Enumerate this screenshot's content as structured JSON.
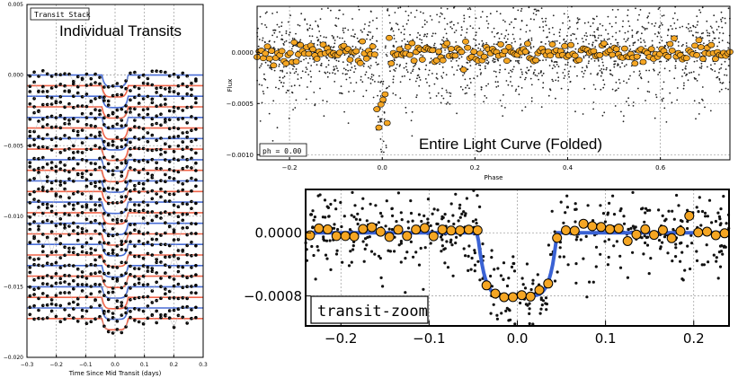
{
  "chart_data": [
    {
      "type": "line",
      "title": "Individual Transits",
      "badge": "Transit Stack",
      "xlabel": "Time Since Mid Transit (days)",
      "ylabel": "",
      "xlim": [
        -0.3,
        0.3
      ],
      "ylim": [
        -0.02,
        0.005
      ],
      "xticks": [
        -0.3,
        -0.2,
        -0.1,
        0.0,
        0.1,
        0.2,
        0.3
      ],
      "xtick_labels": [
        "−0.3",
        "−0.2",
        "−0.1",
        "0.0",
        "0.1",
        "0.2",
        "0.3"
      ],
      "yticks": [
        0.005,
        0.0,
        -0.005,
        -0.01,
        -0.015,
        -0.02
      ],
      "ytick_labels": [
        "0.005",
        "0.000",
        "−0.005",
        "−0.010",
        "−0.015",
        "−0.020"
      ],
      "stack_offsets": [
        0.0,
        -0.00075,
        -0.0015,
        -0.00225,
        -0.003,
        -0.00375,
        -0.0045,
        -0.00525,
        -0.006,
        -0.00675,
        -0.0075,
        -0.00825,
        -0.009,
        -0.00975,
        -0.0105,
        -0.01125,
        -0.012,
        -0.01275,
        -0.0135,
        -0.01425,
        -0.015,
        -0.01575,
        -0.0165,
        -0.01725
      ],
      "model_colors": [
        "#4b6fd6",
        "#f0654a"
      ],
      "transit_half_width": 0.045,
      "transit_depth": 0.0008
    },
    {
      "type": "scatter",
      "title": "Entire Light Curve (Folded)",
      "badge": "ph = 0.00",
      "xlabel": "Phase",
      "ylabel": "Flux",
      "xlim": [
        -0.27,
        0.75
      ],
      "ylim": [
        -0.00105,
        0.00045
      ],
      "xticks": [
        -0.2,
        0.0,
        0.2,
        0.4,
        0.6
      ],
      "xtick_labels": [
        "−0.2",
        "0.0",
        "0.2",
        "0.4",
        "0.6"
      ],
      "yticks": [
        0.0,
        -0.0005,
        -0.001
      ],
      "ytick_labels": [
        "0.0000",
        "−0.0005",
        "−0.0010"
      ],
      "binned_color": "#f5a623"
    },
    {
      "type": "scatter",
      "title": "",
      "badge": "transit-zoom",
      "xlabel": "",
      "ylabel": "",
      "xlim": [
        -0.24,
        0.24
      ],
      "ylim": [
        -0.00118,
        0.00055
      ],
      "xticks": [
        -0.2,
        -0.1,
        0.0,
        0.1,
        0.2
      ],
      "xtick_labels": [
        "−0.2",
        "−0.1",
        "0.0",
        "0.1",
        "0.2"
      ],
      "yticks": [
        0.0,
        -0.0008
      ],
      "ytick_labels": [
        "0.0000",
        "−0.0008"
      ],
      "model_color": "#3a62d4",
      "binned_color": "#f5a623",
      "transit_half_width": 0.045,
      "transit_depth": 0.0008
    }
  ]
}
